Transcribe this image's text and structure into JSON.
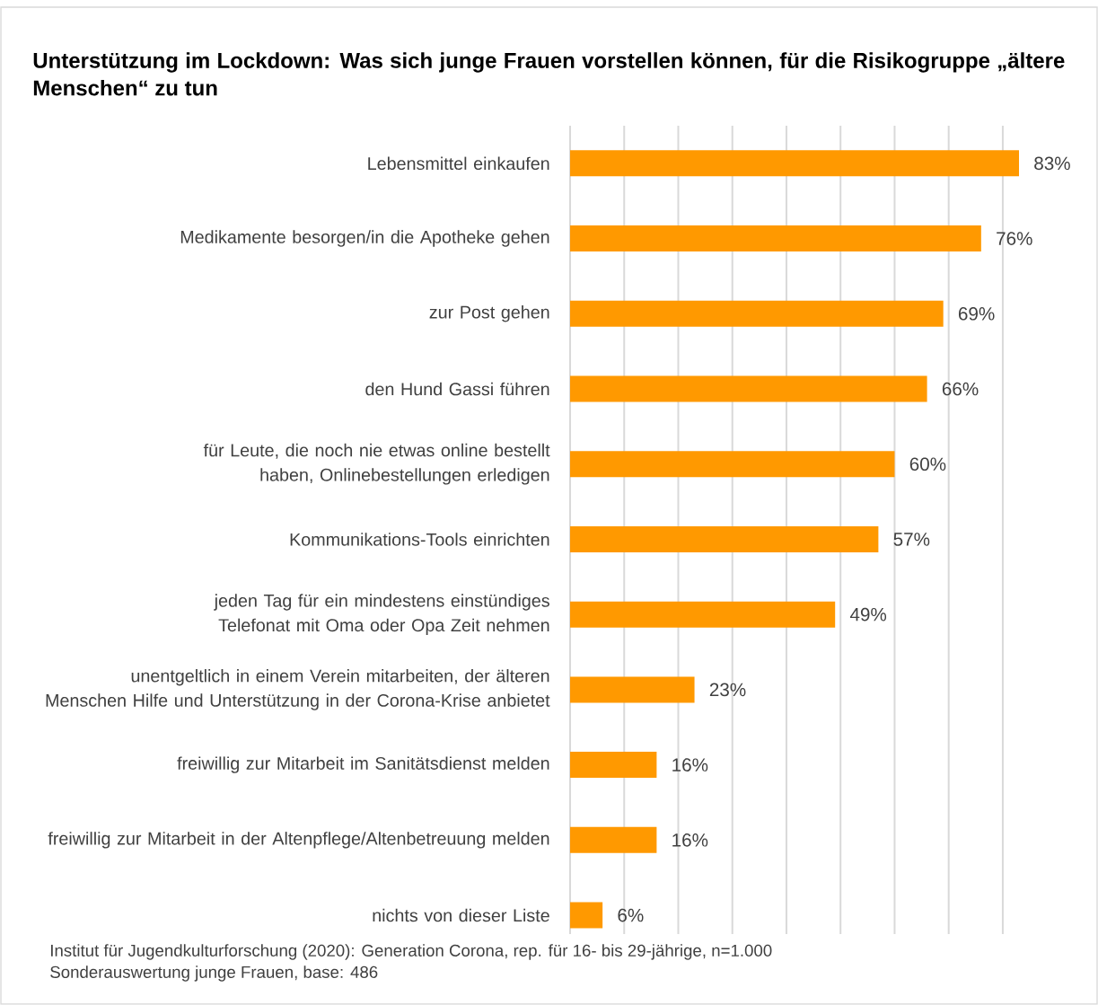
{
  "chart_data": {
    "type": "bar",
    "orientation": "horizontal",
    "title": "Unterstützung im Lockdown: Was sich junge Frauen vorstellen können, für die Risikogruppe „ältere Menschen“ zu tun",
    "categories": [
      "Lebensmittel einkaufen",
      "Medikamente besorgen/in die Apotheke gehen",
      "zur Post gehen",
      "den Hund Gassi führen",
      "für Leute, die noch nie etwas online bestellt haben, Onlinebestellungen erledigen",
      "Kommunikations-Tools einrichten",
      "jeden Tag für ein mindestens einstündiges Telefonat mit Oma oder Opa Zeit nehmen",
      "unentgeltlich in einem Verein mitarbeiten, der älteren Menschen Hilfe und Unterstützung in der Corona-Krise anbietet",
      "freiwillig zur Mitarbeit im Sanitätsdienst melden",
      "freiwillig zur Mitarbeit in der Altenpflege/Altenbetreuung melden",
      "nichts von dieser Liste"
    ],
    "values": [
      83,
      76,
      69,
      66,
      60,
      57,
      49,
      23,
      16,
      16,
      6
    ],
    "value_labels": [
      "83%",
      "76%",
      "69%",
      "66%",
      "60%",
      "57%",
      "49%",
      "23%",
      "16%",
      "16%",
      "6%"
    ],
    "color": "#ff9900",
    "grid": "x",
    "tick_labels": "y",
    "annotations": [
      "Institut für Jugendkulturforschung (2020): Generation Corona, rep. für 16- bis 29-jährige, n=1.000",
      "Sonderauswertung junge Frauen, base: 486"
    ]
  }
}
